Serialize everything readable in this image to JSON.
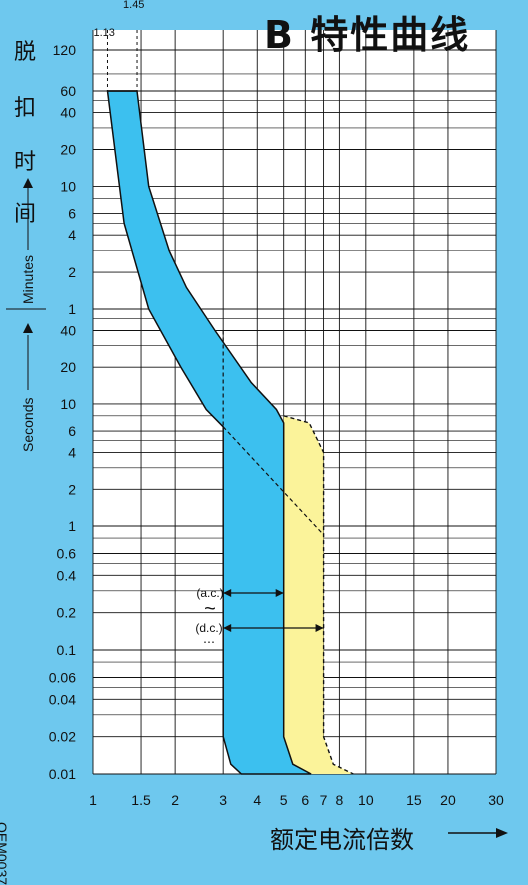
{
  "colors": {
    "background": "#6ec8ee",
    "grid_bg": "#ffffff",
    "band_ac": "#3cc0ef",
    "band_dc": "#fbf39a",
    "line": "#111111"
  },
  "header": {
    "title": "B 特性曲线",
    "marker_1": "1.13",
    "marker_2": "1.45"
  },
  "y_axis": {
    "label_cn_chars": [
      "脱",
      "扣",
      "时",
      "间"
    ],
    "label_minutes": "Minutes",
    "label_seconds": "Seconds"
  },
  "x_axis": {
    "label": "额定电流倍数",
    "arrow": "⟶"
  },
  "code": "OEM0037",
  "annotations": {
    "ac": "(a.c.)",
    "ac_symbol": "~",
    "dc": "(d.c.)",
    "dc_symbol": "⋯"
  },
  "chart_data": {
    "type": "area",
    "xlabel": "额定电流倍数",
    "ylabel": "脱扣时间",
    "x_scale": "log",
    "xlim": [
      1,
      30
    ],
    "x_ticks": [
      "1",
      "1.5",
      "2",
      "3",
      "4",
      "5",
      "6",
      "7",
      "8",
      "10",
      "15",
      "20",
      "30"
    ],
    "y_ticks": [
      {
        "label": "120",
        "unit": "min"
      },
      {
        "label": "60",
        "unit": "min"
      },
      {
        "label": "40",
        "unit": "min"
      },
      {
        "label": "20",
        "unit": "min"
      },
      {
        "label": "10",
        "unit": "min"
      },
      {
        "label": "6",
        "unit": "min"
      },
      {
        "label": "4",
        "unit": "min"
      },
      {
        "label": "2",
        "unit": "min"
      },
      {
        "label": "1",
        "unit": "min"
      },
      {
        "label": "40",
        "unit": "s"
      },
      {
        "label": "20",
        "unit": "s"
      },
      {
        "label": "10",
        "unit": "s"
      },
      {
        "label": "6",
        "unit": "s"
      },
      {
        "label": "4",
        "unit": "s"
      },
      {
        "label": "2",
        "unit": "s"
      },
      {
        "label": "1",
        "unit": "s"
      },
      {
        "label": "0.6",
        "unit": "s"
      },
      {
        "label": "0.4",
        "unit": "s"
      },
      {
        "label": "0.2",
        "unit": "s"
      },
      {
        "label": "0.1",
        "unit": "s"
      },
      {
        "label": "0.06",
        "unit": "s"
      },
      {
        "label": "0.04",
        "unit": "s"
      },
      {
        "label": "0.02",
        "unit": "s"
      },
      {
        "label": "0.01",
        "unit": "s"
      }
    ],
    "markers": [
      1.13,
      1.45
    ],
    "series": [
      {
        "name": "(a.c.)",
        "instantaneous_range": [
          3,
          5
        ],
        "left_curve_seconds": [
          [
            1.13,
            3600
          ],
          [
            1.3,
            300
          ],
          [
            1.6,
            60
          ],
          [
            2.1,
            20
          ],
          [
            2.6,
            9
          ],
          [
            3.0,
            6.5
          ],
          [
            3.0,
            0.02
          ],
          [
            3.2,
            0.012
          ],
          [
            3.5,
            0.01
          ]
        ],
        "right_curve_seconds": [
          [
            1.45,
            3600
          ],
          [
            1.6,
            600
          ],
          [
            1.9,
            180
          ],
          [
            2.2,
            90
          ],
          [
            2.8,
            40
          ],
          [
            3.8,
            15
          ],
          [
            4.7,
            9
          ],
          [
            5.0,
            7
          ],
          [
            5.0,
            0.02
          ],
          [
            5.4,
            0.012
          ],
          [
            6.3,
            0.01
          ]
        ]
      },
      {
        "name": "(d.c.)",
        "instantaneous_range": [
          3,
          7.5
        ],
        "right_curve_seconds": [
          [
            5.0,
            8
          ],
          [
            6.2,
            7
          ],
          [
            7.0,
            4
          ],
          [
            7.0,
            0.02
          ],
          [
            7.6,
            0.012
          ],
          [
            9.0,
            0.01
          ]
        ]
      }
    ]
  }
}
